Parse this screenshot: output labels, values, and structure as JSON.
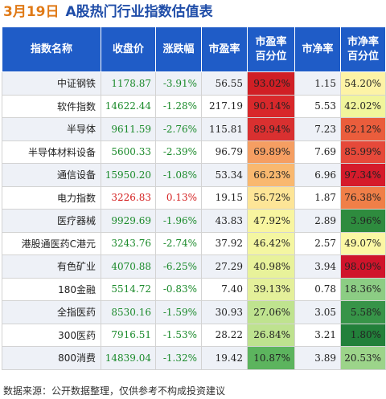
{
  "title": {
    "date": "3月19日",
    "main": "A股热门行业指数估值表"
  },
  "headers": [
    "指数名称",
    "收盘价",
    "涨跌幅",
    "市盈率",
    "市盈率\n百分位",
    "市净率",
    "市净率\n百分位"
  ],
  "rows": [
    {
      "name": "中证钢铁",
      "close": "1178.87",
      "chg": "-3.91%",
      "pe": "56.55",
      "pe_pct": "93.02%",
      "pb": "1.15",
      "pb_pct": "54.20%",
      "pe_color": "#d01f25",
      "pb_color": "#fdf3a6"
    },
    {
      "name": "软件指数",
      "close": "14622.44",
      "chg": "-1.28%",
      "pe": "217.19",
      "pe_pct": "90.14%",
      "pb": "5.53",
      "pb_pct": "42.02%",
      "pe_color": "#d8282b",
      "pb_color": "#f1f59c"
    },
    {
      "name": "半导体",
      "close": "9611.59",
      "chg": "-2.76%",
      "pe": "115.81",
      "pe_pct": "89.94%",
      "pb": "7.23",
      "pb_pct": "82.12%",
      "pe_color": "#d93030",
      "pb_color": "#ea5d3c"
    },
    {
      "name": "半导体材料设备",
      "close": "5600.33",
      "chg": "-2.39%",
      "pe": "96.79",
      "pe_pct": "69.89%",
      "pb": "7.69",
      "pb_pct": "85.99%",
      "pe_color": "#f59e62",
      "pb_color": "#e6493a"
    },
    {
      "name": "通信设备",
      "close": "15950.20",
      "chg": "-1.08%",
      "pe": "53.34",
      "pe_pct": "66.23%",
      "pb": "6.96",
      "pb_pct": "97.34%",
      "pe_color": "#f9b86f",
      "pb_color": "#d51b2b"
    },
    {
      "name": "电力指数",
      "close": "3226.83",
      "chg": "0.13%",
      "pe": "19.15",
      "pe_pct": "56.72%",
      "pb": "1.87",
      "pb_pct": "76.38%",
      "pe_color": "#fde597",
      "pb_color": "#f07f48",
      "close_up": true
    },
    {
      "name": "医疗器械",
      "close": "9929.69",
      "chg": "-1.96%",
      "pe": "43.83",
      "pe_pct": "47.92%",
      "pb": "2.89",
      "pb_pct": "3.96%",
      "pe_color": "#f8f5a0",
      "pb_color": "#2e8b3e"
    },
    {
      "name": "港股通医药C港元",
      "close": "3243.76",
      "chg": "-2.74%",
      "pe": "37.92",
      "pe_pct": "46.42%",
      "pb": "2.57",
      "pb_pct": "49.07%",
      "pe_color": "#f4f6a1",
      "pb_color": "#fbf7a4"
    },
    {
      "name": "有色矿业",
      "close": "4070.88",
      "chg": "-6.25%",
      "pe": "27.29",
      "pe_pct": "40.98%",
      "pb": "3.94",
      "pb_pct": "98.09%",
      "pe_color": "#e8f29a",
      "pb_color": "#d0142b"
    },
    {
      "name": "180金融",
      "close": "5514.72",
      "chg": "-0.83%",
      "pe": "7.40",
      "pe_pct": "39.13%",
      "pb": "0.78",
      "pb_pct": "18.36%",
      "pe_color": "#e4f09a",
      "pb_color": "#8ccd84"
    },
    {
      "name": "全指医药",
      "close": "8530.16",
      "chg": "-1.59%",
      "pe": "30.93",
      "pe_pct": "27.06%",
      "pb": "3.05",
      "pb_pct": "5.58%",
      "pe_color": "#bfe38f",
      "pb_color": "#379448"
    },
    {
      "name": "300医药",
      "close": "7916.51",
      "chg": "-1.53%",
      "pe": "28.22",
      "pe_pct": "26.84%",
      "pb": "3.21",
      "pb_pct": "1.80%",
      "pe_color": "#bee28f",
      "pb_color": "#22803a"
    },
    {
      "name": "800消费",
      "close": "14839.04",
      "chg": "-1.32%",
      "pe": "19.42",
      "pe_pct": "10.87%",
      "pb": "3.89",
      "pb_pct": "20.53%",
      "pe_color": "#5cb45e",
      "pb_color": "#9cd48a"
    }
  ],
  "footer": "数据来源：公开数据整理，仅供参考不构成投资建议"
}
